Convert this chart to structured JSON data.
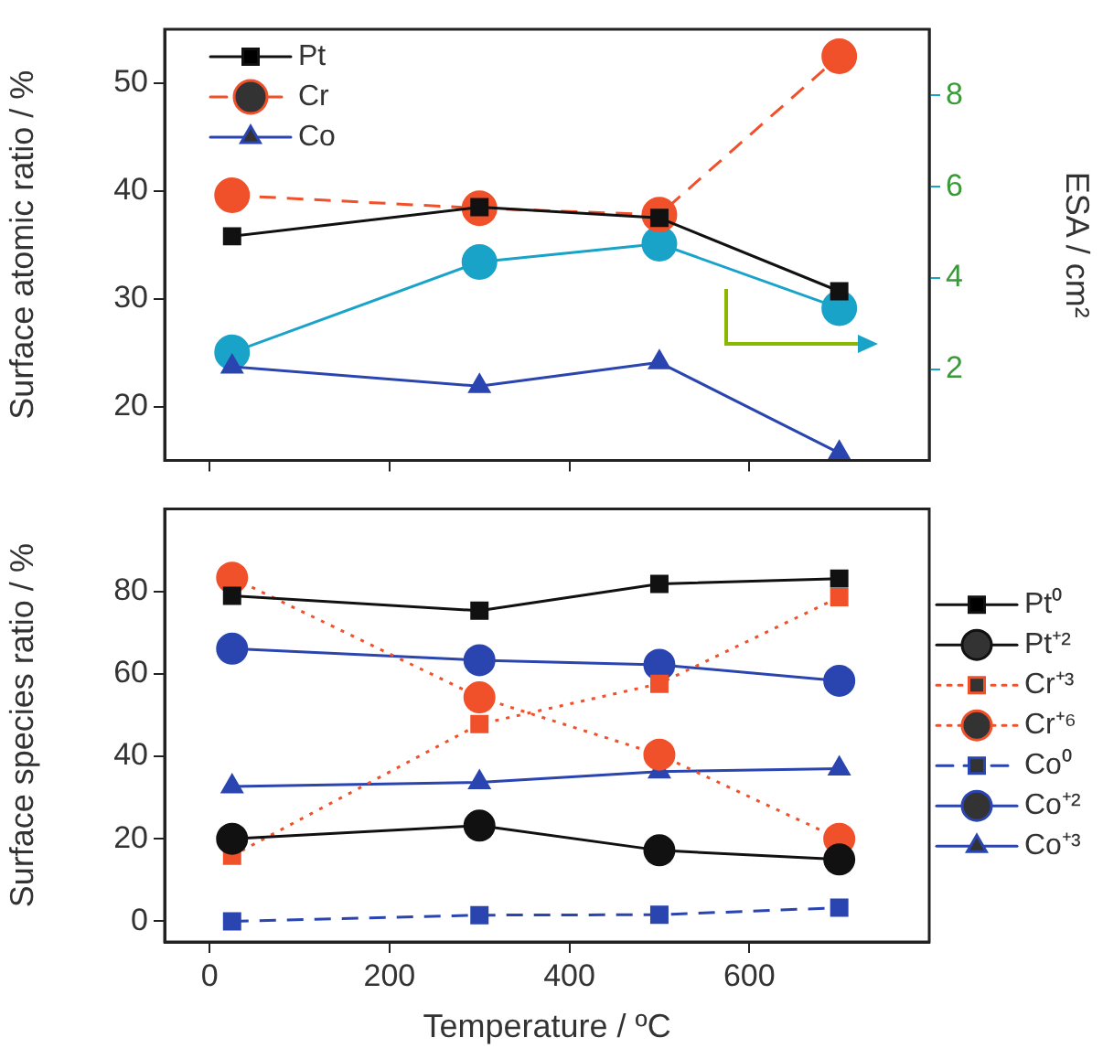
{
  "chart_data": [
    {
      "type": "line",
      "ylabel": "Surface atomic ratio / %",
      "y2label": "ESA / cm²",
      "x": [
        25,
        300,
        500,
        700
      ],
      "xlim": [
        -50,
        800
      ],
      "xticks": [
        0,
        200,
        400,
        600
      ],
      "ylim": [
        15,
        55
      ],
      "yticks": [
        20,
        30,
        40,
        50
      ],
      "y2lim": [
        0,
        9.45
      ],
      "y2ticks": [
        2,
        4,
        6,
        8
      ],
      "tick_labels": "y",
      "legend": "top left",
      "series": [
        {
          "name": "Pt",
          "color": "#111111",
          "values": [
            35.8,
            38.5,
            37.5,
            30.7
          ],
          "marker": "square",
          "line_style": "solid"
        },
        {
          "name": "Cr",
          "color": "#f0502a",
          "values": [
            39.6,
            38.4,
            37.8,
            52.5
          ],
          "marker": "circle",
          "line_style": "dashed"
        },
        {
          "name": "Co",
          "color": "#2a44b0",
          "values": [
            23.7,
            21.9,
            24.1,
            15.7
          ],
          "marker": "triangle",
          "line_style": "solid"
        },
        {
          "color": "#1aa3c8",
          "values": [
            2.37,
            4.35,
            4.75,
            3.34
          ],
          "marker": "circle",
          "line_style": "solid",
          "axis": "y2"
        }
      ]
    },
    {
      "type": "line",
      "xlabel": "Temperature / ºC",
      "ylabel": "Surface species ratio / %",
      "x": [
        25,
        300,
        500,
        700
      ],
      "xlim": [
        -50,
        800
      ],
      "xticks": [
        0,
        200,
        400,
        600
      ],
      "ylim": [
        -5,
        100
      ],
      "yticks": [
        0,
        20,
        40,
        60,
        80
      ],
      "legend": "right",
      "series": [
        {
          "name": "Pt⁰",
          "color": "#111111",
          "values": [
            78.9,
            75.3,
            81.8,
            83.1
          ],
          "marker": "square",
          "line_style": "solid"
        },
        {
          "name": "Pt⁺²",
          "color": "#111111",
          "values": [
            20,
            23.2,
            17.2,
            15
          ],
          "marker": "circle",
          "line_style": "solid"
        },
        {
          "name": "Cr⁺³",
          "color": "#f0502a",
          "values": [
            15.9,
            47.8,
            57.6,
            78.6
          ],
          "marker": "square",
          "line_style": "dotted"
        },
        {
          "name": "Cr⁺⁶",
          "color": "#f0502a",
          "values": [
            83.3,
            54.3,
            40.4,
            20
          ],
          "marker": "circle",
          "line_style": "dotted"
        },
        {
          "name": "Co⁰",
          "color": "#2a44b0",
          "values": [
            0,
            1.5,
            1.6,
            3.3
          ],
          "marker": "square",
          "line_style": "dashed"
        },
        {
          "name": "Co⁺²",
          "color": "#2a44b0",
          "values": [
            66.1,
            63.3,
            62.2,
            58.3
          ],
          "marker": "circle",
          "line_style": "solid"
        },
        {
          "name": "Co⁺³",
          "color": "#2a44b0",
          "values": [
            32.7,
            33.7,
            36.3,
            37
          ],
          "marker": "triangle",
          "line_style": "solid"
        }
      ]
    }
  ]
}
